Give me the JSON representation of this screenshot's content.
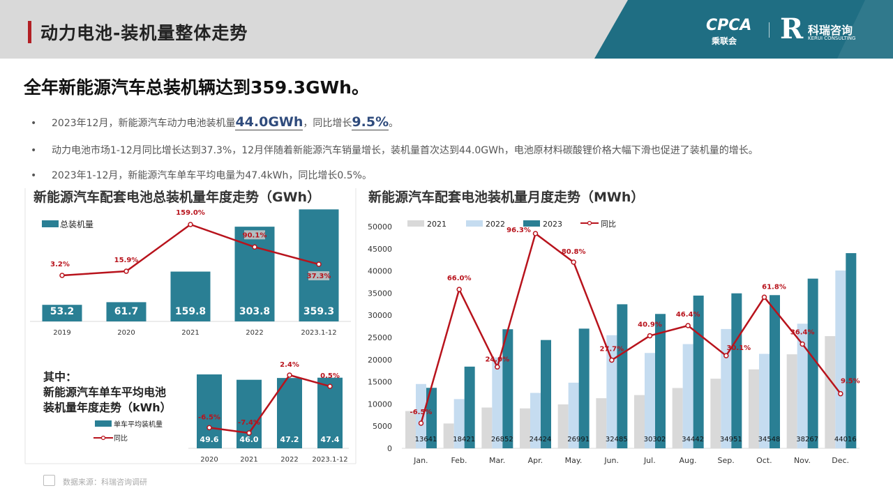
{
  "header": {
    "title": "动力电池-装机量整体走势"
  },
  "logos": {
    "cpca": "CPCA",
    "cpca_sub": "乘联会",
    "kerui_mark": "R",
    "kerui_name": "科瑞咨询",
    "kerui_sub": "KERUI CONSULTING"
  },
  "subtitle": "全年新能源汽车总装机辆达到359.3GWh。",
  "bullets": [
    {
      "dot": "•",
      "pre": "2023年12月，新能源汽车动力电池装机量",
      "em1": "44.0GWh",
      "mid": "，同比增长",
      "em2": "9.5%",
      "post": "。"
    },
    {
      "dot": "•",
      "text": "动力电池市场1-12月同比增长达到37.3%，12月伴随着新能源汽车销量增长，装机量首次达到44.0GWh，电池原材料碳酸锂价格大幅下滑也促进了装机量的增长。"
    },
    {
      "dot": "•",
      "text": "2023年1-12月，新能源汽车单车平均电量为47.4kWh，同比增长0.5%。"
    }
  ],
  "source": "数据来源：科瑞咨询调研",
  "colors": {
    "bar": "#2a7f94",
    "line": "#b8131c",
    "y2021": "#d9d9d9",
    "y2022": "#c5dcf0",
    "header_band": "#1f6e83"
  },
  "chart_data": [
    {
      "type": "bar",
      "title": "新能源汽车配套电池总装机量年度走势（GWh）",
      "categories": [
        "2019",
        "2020",
        "2021",
        "2022",
        "2023.1-12"
      ],
      "series": [
        {
          "name": "总装机量",
          "values": [
            53.2,
            61.7,
            159.8,
            303.8,
            359.3
          ],
          "labels": [
            "53.2",
            "61.7",
            "159.8",
            "303.8",
            "359.3"
          ]
        }
      ],
      "line": {
        "values": [
          3.2,
          15.9,
          159.0,
          90.1,
          37.3
        ],
        "labels": [
          "3.2%",
          "15.9%",
          "159.0%",
          "90.1%",
          "37.3%"
        ]
      },
      "legend": "top-left"
    },
    {
      "type": "bar",
      "title_lines": [
        "其中：",
        "新能源汽车单车平均电池",
        "装机量年度走势（kWh）"
      ],
      "categories": [
        "2020",
        "2021",
        "2022",
        "2023.1-12"
      ],
      "series": [
        {
          "name": "单车平均装机量",
          "values": [
            49.6,
            46.0,
            47.2,
            47.4
          ],
          "labels": [
            "49.6",
            "46.0",
            "47.2",
            "47.4"
          ]
        }
      ],
      "line": {
        "name": "同比",
        "values": [
          -6.5,
          -7.4,
          2.4,
          0.5
        ],
        "labels": [
          "-6.5%",
          "-7.4%",
          "2.4%",
          "0.5%"
        ]
      },
      "legend": "bottom-left"
    },
    {
      "type": "bar",
      "title": "新能源汽车配套电池装机量月度走势（MWh）",
      "categories": [
        "Jan.",
        "Feb.",
        "Mar.",
        "Apr.",
        "May.",
        "Jun.",
        "Jul.",
        "Aug.",
        "Sep.",
        "Oct.",
        "Nov.",
        "Dec."
      ],
      "series": [
        {
          "name": "2021",
          "values": [
            8400,
            5600,
            9200,
            9000,
            9900,
            11300,
            12000,
            13600,
            15700,
            17800,
            21200,
            25300
          ]
        },
        {
          "name": "2022",
          "values": [
            14500,
            11100,
            20500,
            12500,
            14800,
            25500,
            21500,
            23500,
            26900,
            21300,
            28100,
            40100
          ]
        },
        {
          "name": "2023",
          "values": [
            13641,
            18421,
            26852,
            24424,
            26991,
            32485,
            30302,
            34442,
            34951,
            34548,
            38267,
            44016
          ],
          "labels": [
            "13641",
            "18421",
            "26852",
            "24424",
            "26991",
            "32485",
            "30302",
            "34442",
            "34951",
            "34548",
            "38267",
            "44016"
          ]
        }
      ],
      "line": {
        "name": "同比",
        "values": [
          -6.5,
          66.0,
          24.0,
          96.3,
          80.8,
          27.7,
          40.9,
          46.4,
          30.1,
          61.8,
          36.4,
          9.5
        ],
        "labels": [
          "-6.5%",
          "66.0%",
          "24.0%",
          "96.3%",
          "80.8%",
          "27.7%",
          "40.9%",
          "46.4%",
          "30.1%",
          "61.8%",
          "36.4%",
          "9.5%"
        ]
      },
      "yticks": [
        "0",
        "5000",
        "10000",
        "15000",
        "20000",
        "25000",
        "30000",
        "35000",
        "40000",
        "45000",
        "50000"
      ],
      "ylim": [
        0,
        50000
      ],
      "legend": "top-left"
    }
  ]
}
